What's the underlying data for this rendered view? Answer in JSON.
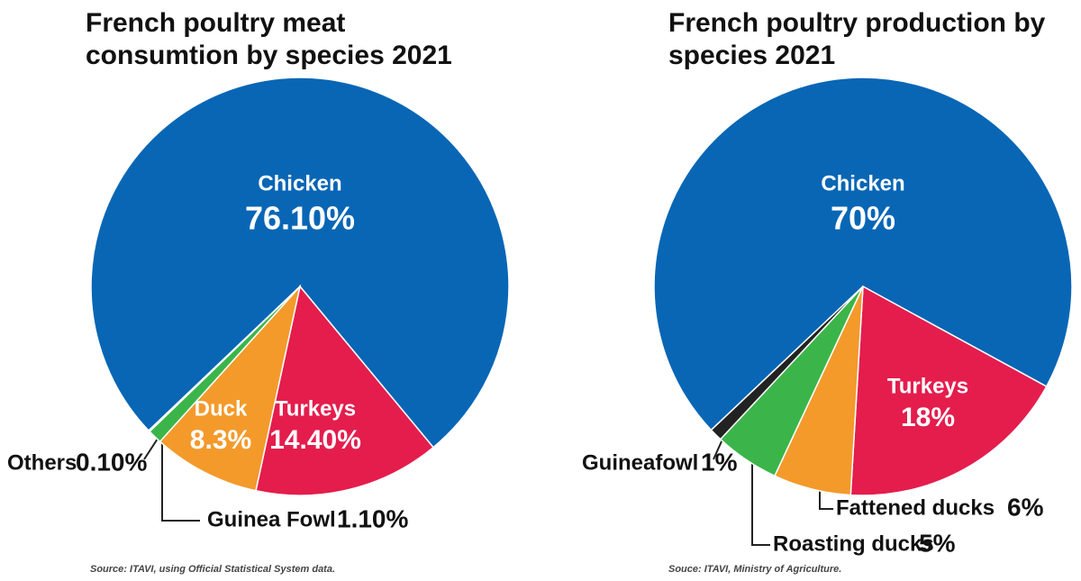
{
  "chart_data": [
    {
      "type": "pie",
      "title": "French poultry meat consumtion by species 2021",
      "categories": [
        "Chicken",
        "Turkeys",
        "Duck",
        "Guinea Fowl",
        "Others"
      ],
      "values": [
        76.1,
        14.4,
        8.3,
        1.1,
        0.1
      ],
      "value_labels": [
        "76.10%",
        "14.40%",
        "8.3%",
        "1.10%",
        "0.10%"
      ],
      "colors": [
        "#0866b5",
        "#e41d4d",
        "#f39a2b",
        "#3bb54a",
        "#8cc63f"
      ],
      "source": "Source: ITAVI, using Official Statistical System data."
    },
    {
      "type": "pie",
      "title": "French poultry production by species 2021",
      "categories": [
        "Chicken",
        "Turkeys",
        "Fattened ducks",
        "Roasting ducks",
        "Guineafowl"
      ],
      "values": [
        70,
        18,
        6,
        5,
        1
      ],
      "value_labels": [
        "70%",
        "18%",
        "6%",
        "5%",
        "1%"
      ],
      "colors": [
        "#0866b5",
        "#e41d4d",
        "#f39a2b",
        "#3bb54a",
        "#222222"
      ],
      "source": "Souce: ITAVI, Ministry of Agriculture."
    }
  ]
}
